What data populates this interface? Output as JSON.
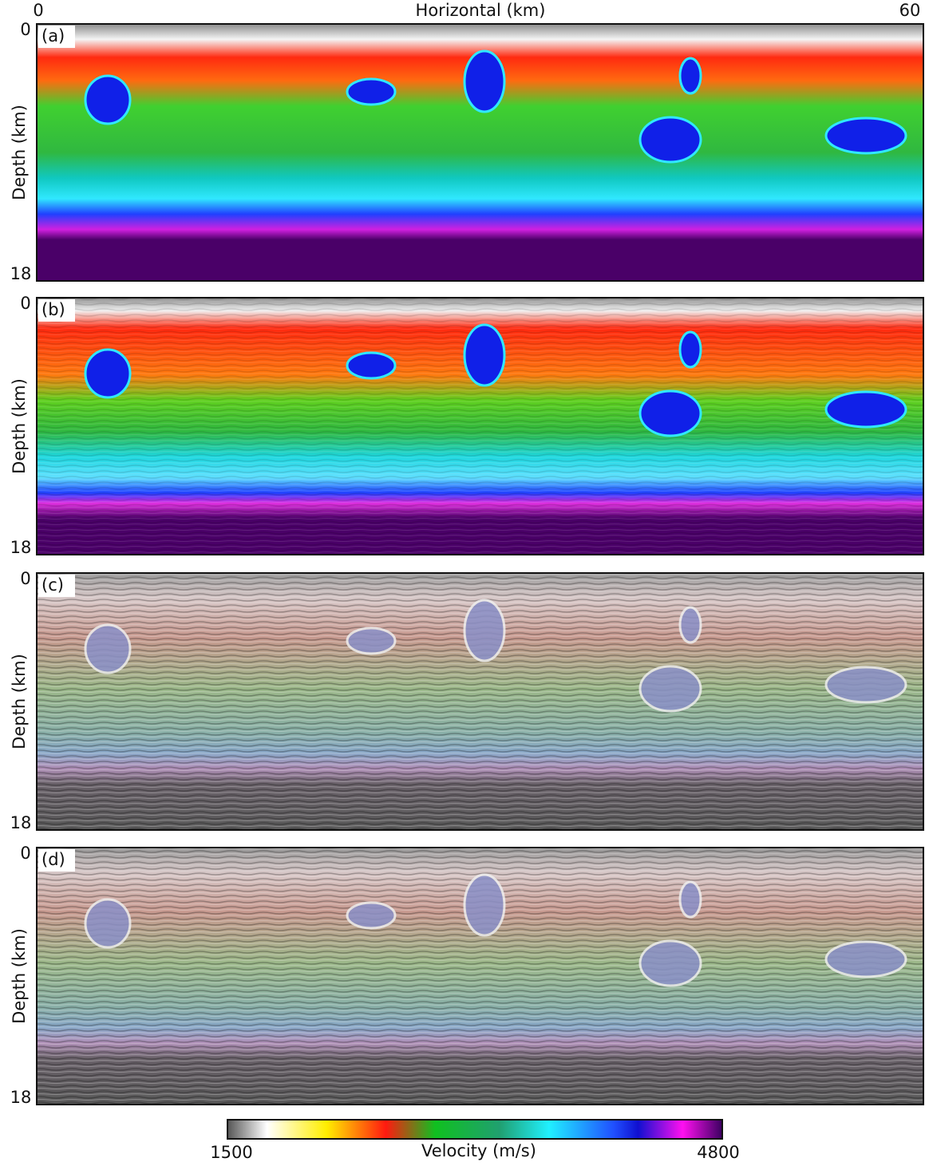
{
  "x_axis": {
    "label": "Horizontal (km)",
    "ticks": [
      "0",
      "60"
    ]
  },
  "panels": [
    {
      "label": "(a)",
      "y_axis_label": "Depth (km)",
      "yticks": [
        "0",
        "18"
      ]
    },
    {
      "label": "(b)",
      "y_axis_label": "Depth (km)",
      "yticks": [
        "0",
        "18"
      ]
    },
    {
      "label": "(c)",
      "y_axis_label": "Depth (km)",
      "yticks": [
        "0",
        "18"
      ]
    },
    {
      "label": "(d)",
      "y_axis_label": "Depth (km)",
      "yticks": [
        "0",
        "18"
      ]
    }
  ],
  "colorbar": {
    "label": "Velocity (m/s)",
    "ticks": [
      "1500",
      "4800"
    ]
  }
}
